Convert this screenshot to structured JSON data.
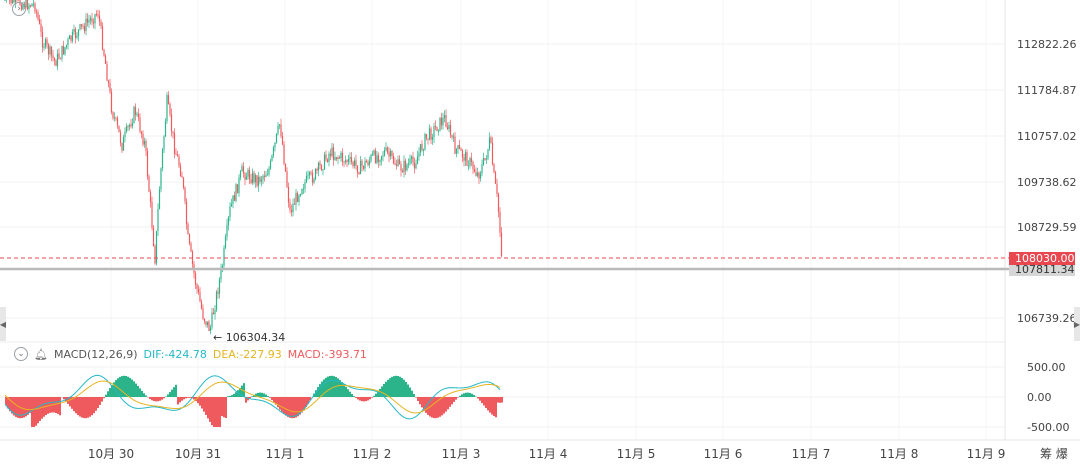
{
  "price_axis": {
    "labels": [
      "112822.26",
      "111784.87",
      "110757.02",
      "109738.62",
      "108729.59",
      "106739.26"
    ],
    "last_price": "108030.00",
    "ref_price": "107811.34",
    "colors": {
      "up": "#2bb38a",
      "down": "#ee5a5d",
      "last_price_bg": "#e8474f"
    }
  },
  "annotations": {
    "low_label": "106304.34"
  },
  "macd": {
    "title": "MACD(12,26,9)",
    "dif": "DIF:-424.78",
    "dea": "DEA:-227.93",
    "macd": "MACD:-393.71",
    "axis": [
      "500.00",
      "0.00",
      "-500.00"
    ],
    "colors": {
      "dif": "#26b8c8",
      "dea": "#e6b422",
      "hist_up": "#2bb38a",
      "hist_down": "#ee5a5d"
    }
  },
  "time_axis": [
    "10月 30",
    "10月 31",
    "11月 1",
    "11月 2",
    "11月 3",
    "11月 4",
    "11月 5",
    "11月 6",
    "11月 7",
    "11月 8",
    "11月 9"
  ],
  "corner": {
    "label": "筹 爆"
  },
  "icons": [
    "forward-icon",
    "collapse-icon",
    "bell-icon",
    "left-arrow-icon",
    "right-arrow-icon"
  ]
}
